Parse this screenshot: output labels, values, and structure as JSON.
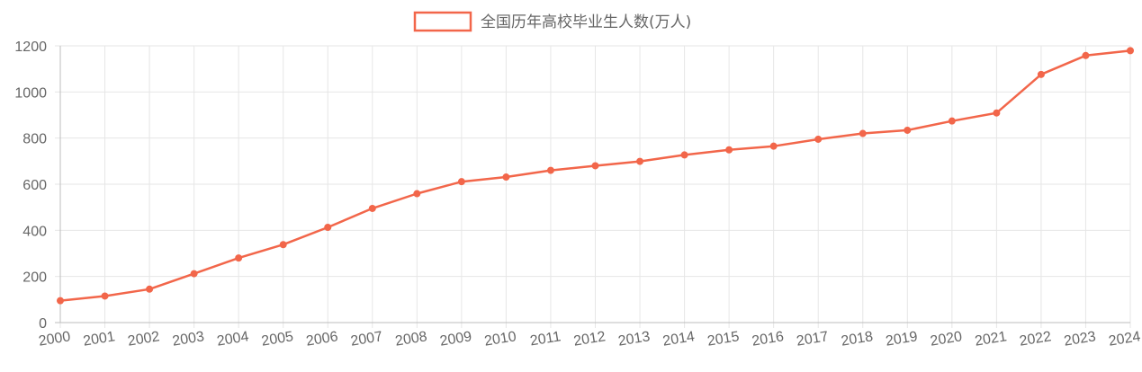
{
  "chart_data": {
    "type": "line",
    "title": "",
    "xlabel": "",
    "ylabel": "",
    "categories": [
      "2000",
      "2001",
      "2002",
      "2003",
      "2004",
      "2005",
      "2006",
      "2007",
      "2008",
      "2009",
      "2010",
      "2011",
      "2012",
      "2013",
      "2014",
      "2015",
      "2016",
      "2017",
      "2018",
      "2019",
      "2020",
      "2021",
      "2022",
      "2023",
      "2024"
    ],
    "series": [
      {
        "name": "全国历年高校毕业生人数(万人)",
        "values": [
          95,
          115,
          145,
          212,
          280,
          338,
          413,
          495,
          559,
          611,
          631,
          660,
          680,
          699,
          727,
          749,
          765,
          795,
          820,
          834,
          874,
          909,
          1076,
          1158,
          1179
        ],
        "color": "#f2664a"
      }
    ],
    "ylim": [
      0,
      1200
    ],
    "yticks": [
      "0",
      "200",
      "400",
      "600",
      "800",
      "1000",
      "1200"
    ],
    "ytick_values": [
      0,
      200,
      400,
      600,
      800,
      1000,
      1200
    ],
    "grid": true,
    "legend_position": "top-center",
    "gridline_color": "#e6e6e6",
    "axis_color": "#bdbdbd",
    "text_color": "#666666"
  }
}
